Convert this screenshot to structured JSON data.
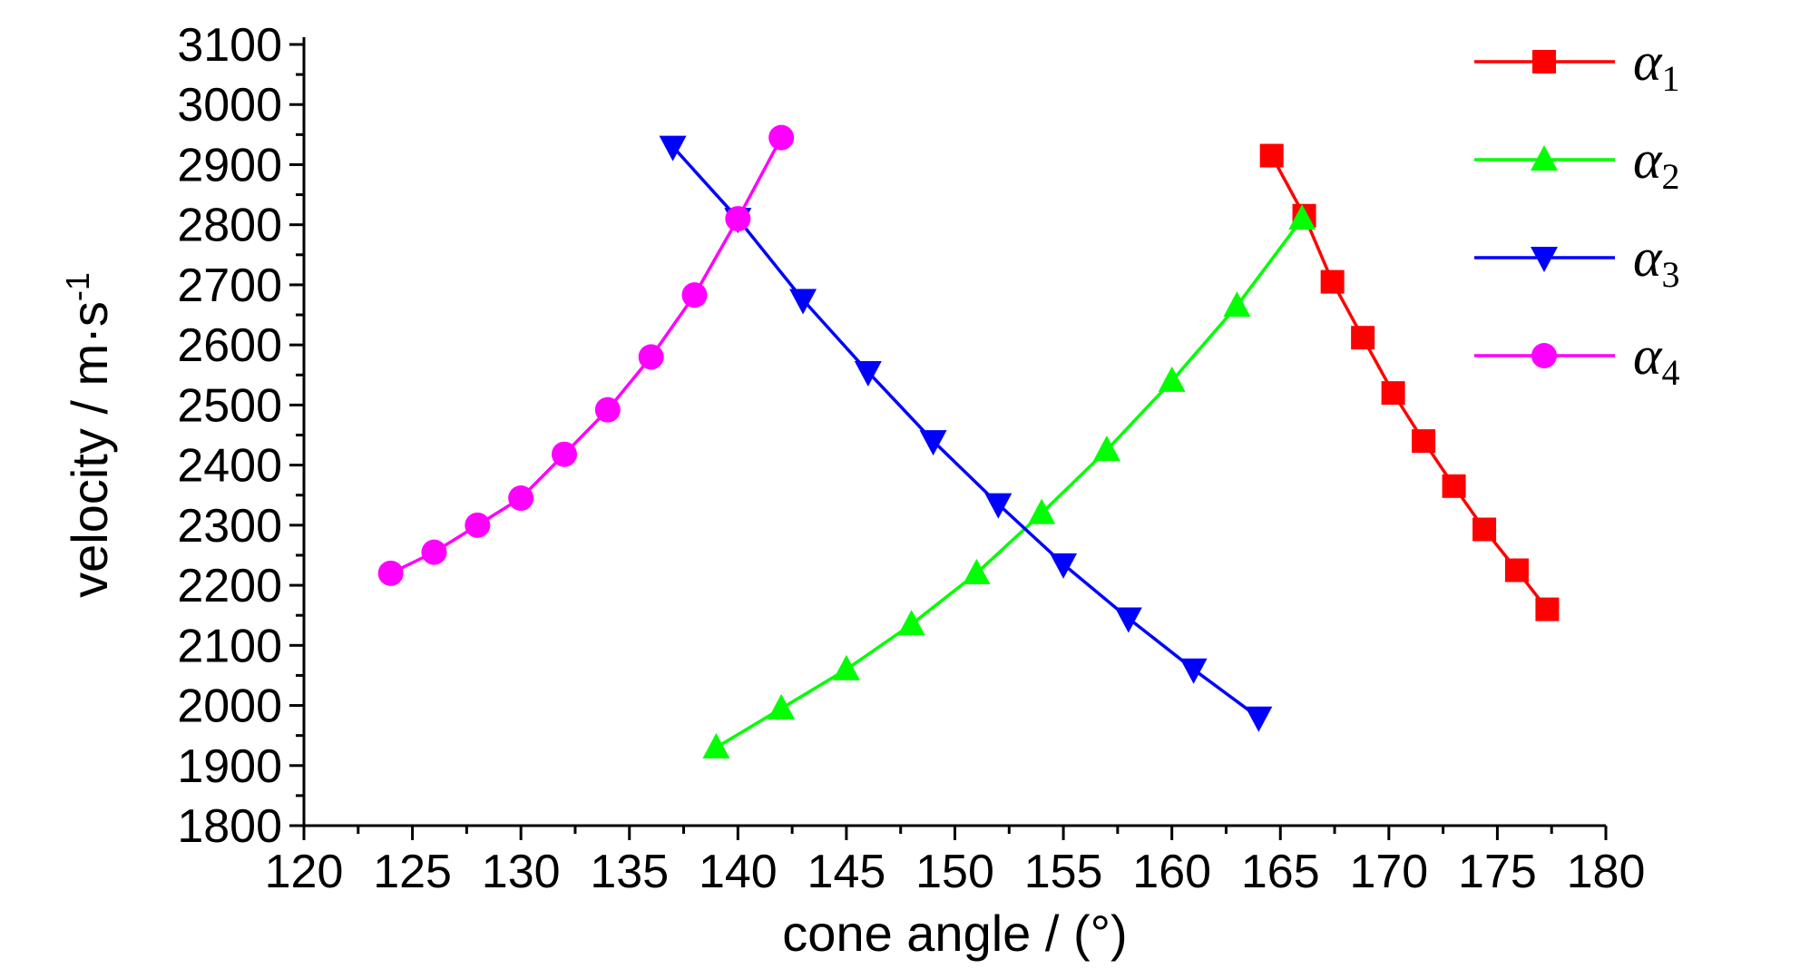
{
  "chart_data": {
    "type": "line",
    "xlabel": "cone angle / (°)",
    "ylabel": "velocity / m·s",
    "ylabel_sup": "-1",
    "xlim": [
      120,
      180
    ],
    "ylim": [
      1800,
      3100
    ],
    "x_ticks": [
      120,
      125,
      130,
      135,
      140,
      145,
      150,
      155,
      160,
      165,
      170,
      175,
      180
    ],
    "y_ticks": [
      1800,
      1900,
      2000,
      2100,
      2200,
      2300,
      2400,
      2500,
      2600,
      2700,
      2800,
      2900,
      3000,
      3100
    ],
    "grid": false,
    "legend_position": "top-right",
    "series": [
      {
        "name": "α",
        "sub": "1",
        "color": "#ff0000",
        "marker": "square",
        "points": [
          [
            164.6,
            2915
          ],
          [
            166.1,
            2815
          ],
          [
            167.4,
            2705
          ],
          [
            168.8,
            2612
          ],
          [
            170.2,
            2520
          ],
          [
            171.6,
            2440
          ],
          [
            173.0,
            2365
          ],
          [
            174.4,
            2293
          ],
          [
            175.9,
            2225
          ],
          [
            177.3,
            2160
          ]
        ]
      },
      {
        "name": "α",
        "sub": "2",
        "color": "#00ff00",
        "marker": "triangle-up",
        "points": [
          [
            139,
            1930
          ],
          [
            142,
            1995
          ],
          [
            145,
            2060
          ],
          [
            148,
            2135
          ],
          [
            151,
            2220
          ],
          [
            154,
            2320
          ],
          [
            157,
            2425
          ],
          [
            160,
            2540
          ],
          [
            163,
            2665
          ],
          [
            166,
            2810
          ]
        ]
      },
      {
        "name": "α",
        "sub": "3",
        "color": "#0000ff",
        "marker": "triangle-down",
        "points": [
          [
            137,
            2930
          ],
          [
            140,
            2810
          ],
          [
            143,
            2675
          ],
          [
            146,
            2555
          ],
          [
            149,
            2440
          ],
          [
            152,
            2335
          ],
          [
            155,
            2235
          ],
          [
            158,
            2145
          ],
          [
            161,
            2060
          ],
          [
            164,
            1980
          ]
        ]
      },
      {
        "name": "α",
        "sub": "4",
        "color": "#ff00ff",
        "marker": "circle",
        "points": [
          [
            124,
            2220
          ],
          [
            126,
            2255
          ],
          [
            128,
            2300
          ],
          [
            130,
            2345
          ],
          [
            132,
            2418
          ],
          [
            134,
            2492
          ],
          [
            136,
            2580
          ],
          [
            138,
            2683
          ],
          [
            140,
            2810
          ],
          [
            142,
            2945
          ]
        ]
      }
    ]
  }
}
